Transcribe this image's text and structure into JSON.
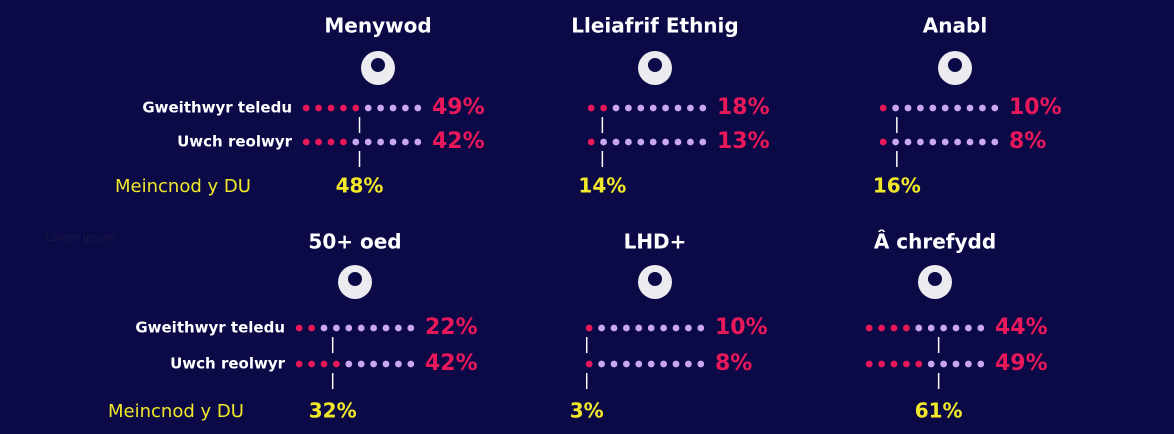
{
  "note": "Lorem ipsum",
  "panels": [
    {
      "title": "Menywod",
      "rows": [
        {
          "label": "Gweithwyr teledu",
          "value": 49,
          "value_label": "49%"
        },
        {
          "label": "Uwch reolwyr",
          "value": 42,
          "value_label": "42%"
        }
      ],
      "benchmark_label": "Meincnod y DU",
      "benchmark": 48,
      "benchmark_text": "48%"
    },
    {
      "title": "Lleiafrif Ethnig",
      "rows": [
        {
          "value": 18,
          "value_label": "18%"
        },
        {
          "value": 13,
          "value_label": "13%"
        }
      ],
      "benchmark": 14,
      "benchmark_text": "14%"
    },
    {
      "title": "Anabl",
      "rows": [
        {
          "value": 10,
          "value_label": "10%"
        },
        {
          "value": 8,
          "value_label": "8%"
        }
      ],
      "benchmark": 16,
      "benchmark_text": "16%"
    },
    {
      "title": "50+ oed",
      "rows": [
        {
          "label": "Gweithwyr teledu",
          "value": 22,
          "value_label": "22%"
        },
        {
          "label": "Uwch reolwyr",
          "value": 42,
          "value_label": "42%"
        }
      ],
      "benchmark_label": "Meincnod y DU",
      "benchmark": 32,
      "benchmark_text": "32%"
    },
    {
      "title": "LHD+",
      "rows": [
        {
          "value": 10,
          "value_label": "10%"
        },
        {
          "value": 8,
          "value_label": "8%"
        }
      ],
      "benchmark": 3,
      "benchmark_text": "3%"
    },
    {
      "title": "Â chrefydd",
      "rows": [
        {
          "value": 44,
          "value_label": "44%"
        },
        {
          "value": 49,
          "value_label": "49%"
        }
      ],
      "benchmark": 61,
      "benchmark_text": "61%"
    }
  ]
}
